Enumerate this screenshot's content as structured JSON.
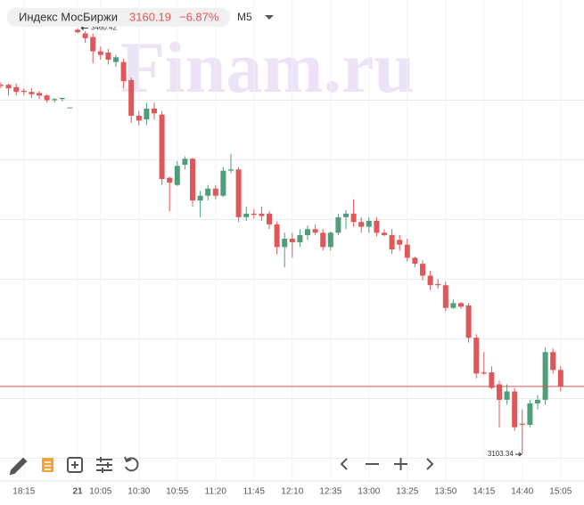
{
  "header": {
    "instrument": "Индекс МосБиржи",
    "change": "−6.87%",
    "timeframe": "M5"
  },
  "chart_data": {
    "type": "candlestick",
    "watermark": "Finam.ru",
    "categories": [
      null,
      null,
      null,
      "18:15",
      null,
      null,
      null,
      null,
      null,
      null,
      "21",
      null,
      null,
      "10:05",
      null,
      null,
      null,
      null,
      "10:30",
      null,
      null,
      null,
      null,
      "10:55",
      null,
      null,
      null,
      null,
      "11:20",
      null,
      null,
      null,
      null,
      "11:45",
      null,
      null,
      null,
      null,
      "12:10",
      null,
      null,
      null,
      null,
      "12:35",
      null,
      null,
      null,
      null,
      "13:00",
      null,
      null,
      null,
      null,
      "13:25",
      null,
      null,
      null,
      null,
      "13:50",
      null,
      null,
      null,
      null,
      "14:15",
      null,
      null,
      null,
      null,
      "14:40",
      null,
      null,
      null,
      null,
      "15:05"
    ],
    "open": [
      3413,
      3413,
      3411,
      3408,
      3407,
      3406,
      3404,
      3400,
      3401,
      3394,
      3459,
      3456,
      3453,
      3441,
      3440,
      3432,
      3432,
      3417,
      3387,
      3384,
      3393,
      3388,
      3335,
      3329,
      3346,
      3351,
      3316,
      3320,
      3326,
      3320,
      3341,
      3342,
      3302,
      3305,
      3305,
      3305,
      3296,
      3277,
      3284,
      3281,
      3287,
      3292,
      3289,
      3277,
      3289,
      3302,
      3305,
      3298,
      3294,
      3299,
      3289,
      3287,
      3283,
      3279,
      3268,
      3263,
      3253,
      3246,
      3245,
      3226,
      3230,
      3228,
      3201,
      3172,
      3172,
      3162,
      3149,
      3156,
      3129,
      3128,
      3146,
      3149,
      3189,
      3174
    ],
    "high": [
      3415,
      3414,
      3414,
      3410,
      3410,
      3408,
      3405,
      3402,
      3402,
      3394,
      3460.42,
      3458,
      3456,
      3445,
      3443,
      3438,
      3435,
      3419,
      3391,
      3398,
      3398,
      3391,
      3336,
      3349,
      3353,
      3352,
      3324,
      3329,
      3329,
      3344,
      3355,
      3344,
      3311,
      3309,
      3311,
      3307,
      3298,
      3289,
      3289,
      3292,
      3295,
      3296,
      3292,
      3290,
      3305,
      3308,
      3317,
      3302,
      3302,
      3302,
      3292,
      3292,
      3287,
      3284,
      3269,
      3266,
      3257,
      3250,
      3248,
      3233,
      3231,
      3230,
      3204,
      3189,
      3177,
      3165,
      3162,
      3159,
      3141,
      3149,
      3153,
      3193,
      3192,
      3177
    ],
    "low": [
      3410,
      3404,
      3404,
      3404,
      3402,
      3401,
      3398,
      3398,
      3399,
      3394,
      3456,
      3448,
      3431,
      3434,
      3430,
      3428,
      3410,
      3381,
      3379,
      3379,
      3384,
      3329,
      3307,
      3328,
      3342,
      3311,
      3302,
      3316,
      3317,
      3319,
      3339,
      3298,
      3299,
      3301,
      3299,
      3292,
      3271,
      3260,
      3268,
      3277,
      3283,
      3287,
      3274,
      3274,
      3287,
      3292,
      3294,
      3289,
      3289,
      3286,
      3286,
      3271,
      3274,
      3265,
      3260,
      3249,
      3241,
      3242,
      3223,
      3225,
      3225,
      3197,
      3167,
      3170,
      3158,
      3126,
      3145,
      3123,
      3103.34,
      3126,
      3141,
      3145,
      3171,
      3156
    ],
    "close": [
      3412,
      3410,
      3407,
      3407,
      3405,
      3404,
      3400,
      3401,
      3402,
      3394,
      3457,
      3452,
      3441,
      3438,
      3434,
      3436,
      3416,
      3387,
      3383,
      3393,
      3389,
      3334,
      3331,
      3345,
      3351,
      3316,
      3320,
      3326,
      3320,
      3341,
      3342,
      3302,
      3305,
      3304,
      3303,
      3296,
      3277,
      3284,
      3281,
      3287,
      3292,
      3289,
      3277,
      3289,
      3302,
      3305,
      3298,
      3294,
      3299,
      3289,
      3287,
      3275,
      3279,
      3268,
      3263,
      3253,
      3245,
      3245,
      3226,
      3230,
      3227,
      3201,
      3171,
      3171,
      3159,
      3149,
      3156,
      3126,
      3128,
      3146,
      3149,
      3189,
      3174,
      3160.19
    ],
    "last_price": 3160.19,
    "ylim": [
      3081,
      3484
    ],
    "ygrid": [
      3100,
      3150,
      3200,
      3250,
      3300,
      3350,
      3400
    ],
    "up_color": "#4e9e7c",
    "down_color": "#e0575a",
    "price_line_color": "#d9534f",
    "grid": true,
    "high_marker_index": 10,
    "low_marker_index": 68
  }
}
